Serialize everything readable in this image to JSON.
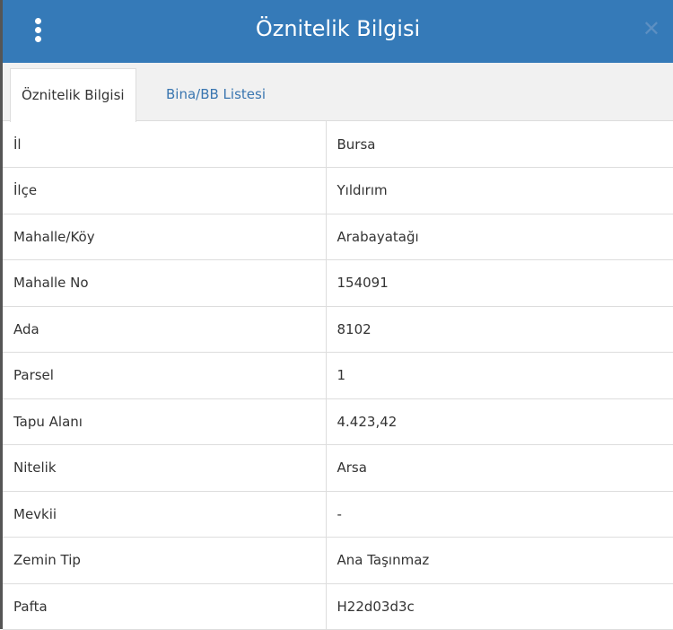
{
  "header": {
    "title": "Öznitelik Bilgisi",
    "menu_icon": "vertical-dots-icon",
    "close_icon": "close-icon"
  },
  "tabs": [
    {
      "label": "Öznitelik Bilgisi",
      "active": true
    },
    {
      "label": "Bina/BB Listesi",
      "active": false
    }
  ],
  "rows": [
    {
      "key": "İl",
      "value": "Bursa"
    },
    {
      "key": "İlçe",
      "value": "Yıldırım"
    },
    {
      "key": "Mahalle/Köy",
      "value": "Arabayatağı"
    },
    {
      "key": "Mahalle No",
      "value": "154091"
    },
    {
      "key": "Ada",
      "value": "8102"
    },
    {
      "key": "Parsel",
      "value": "1"
    },
    {
      "key": "Tapu Alanı",
      "value": "4.423,42"
    },
    {
      "key": "Nitelik",
      "value": "Arsa"
    },
    {
      "key": "Mevkii",
      "value": "-"
    },
    {
      "key": "Zemin Tip",
      "value": "Ana Taşınmaz"
    },
    {
      "key": "Pafta",
      "value": "H22d03d3c"
    }
  ]
}
